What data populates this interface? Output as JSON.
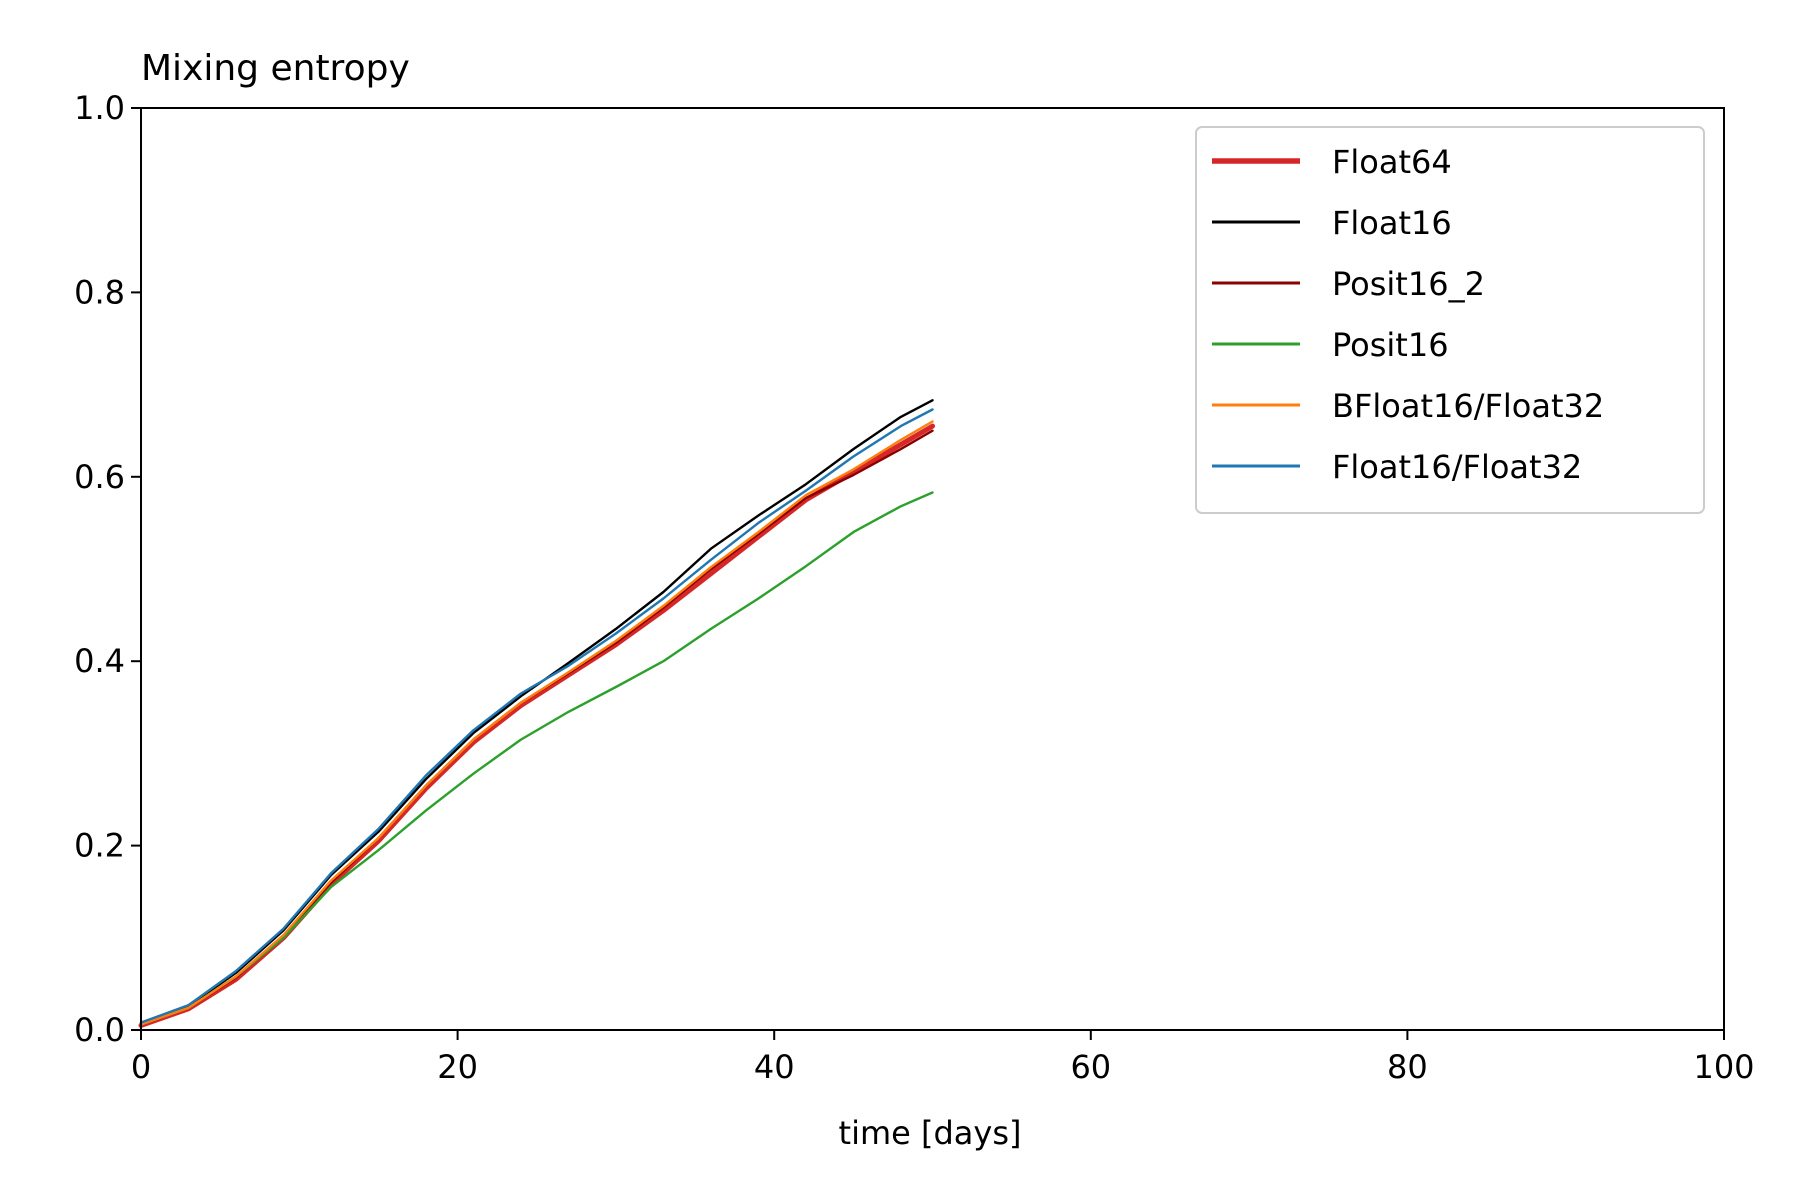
{
  "chart_data": {
    "type": "line",
    "title": "Mixing entropy",
    "xlabel": "time [days]",
    "ylabel": "",
    "xlim": [
      0,
      100
    ],
    "ylim": [
      0,
      1.0
    ],
    "xticks": [
      "0",
      "20",
      "40",
      "60",
      "80",
      "100"
    ],
    "yticks": [
      "0.0",
      "0.2",
      "0.4",
      "0.6",
      "0.8",
      "1.0"
    ],
    "grid": false,
    "legend_position": "top-right",
    "series": [
      {
        "name": "Float64",
        "color": "#d62728",
        "linewidth": "thick",
        "x": [
          0,
          3,
          6,
          9,
          12,
          15,
          18,
          21,
          24,
          27,
          30,
          33,
          36,
          39,
          42,
          45,
          48,
          50
        ],
        "y": [
          0.005,
          0.023,
          0.055,
          0.1,
          0.158,
          0.205,
          0.262,
          0.312,
          0.352,
          0.385,
          0.418,
          0.455,
          0.495,
          0.535,
          0.575,
          0.605,
          0.635,
          0.655
        ]
      },
      {
        "name": "Float16",
        "color": "#000000",
        "linewidth": "thin",
        "x": [
          0,
          3,
          6,
          9,
          12,
          15,
          18,
          21,
          24,
          27,
          30,
          33,
          36,
          39,
          42,
          45,
          48,
          50
        ],
        "y": [
          0.008,
          0.026,
          0.062,
          0.108,
          0.168,
          0.215,
          0.272,
          0.322,
          0.362,
          0.398,
          0.435,
          0.475,
          0.522,
          0.558,
          0.592,
          0.63,
          0.665,
          0.683
        ]
      },
      {
        "name": "Posit16_2",
        "color": "#8b0000",
        "linewidth": "thin",
        "x": [
          0,
          3,
          6,
          9,
          12,
          15,
          18,
          21,
          24,
          27,
          30,
          33,
          36,
          39,
          42,
          45,
          48,
          50
        ],
        "y": [
          0.006,
          0.024,
          0.057,
          0.102,
          0.16,
          0.208,
          0.265,
          0.315,
          0.355,
          0.387,
          0.42,
          0.458,
          0.5,
          0.538,
          0.577,
          0.602,
          0.63,
          0.65
        ]
      },
      {
        "name": "Posit16",
        "color": "#2ca02c",
        "linewidth": "thin",
        "x": [
          0,
          3,
          6,
          9,
          12,
          15,
          18,
          21,
          24,
          27,
          30,
          33,
          36,
          39,
          42,
          45,
          48,
          50
        ],
        "y": [
          0.006,
          0.024,
          0.058,
          0.1,
          0.155,
          0.195,
          0.238,
          0.278,
          0.315,
          0.345,
          0.372,
          0.4,
          0.435,
          0.468,
          0.503,
          0.54,
          0.568,
          0.583
        ]
      },
      {
        "name": "BFloat16/Float32",
        "color": "#ff7f0e",
        "linewidth": "thin",
        "x": [
          0,
          3,
          6,
          9,
          12,
          15,
          18,
          21,
          24,
          27,
          30,
          33,
          36,
          39,
          42,
          45,
          48,
          50
        ],
        "y": [
          0.006,
          0.024,
          0.058,
          0.103,
          0.162,
          0.208,
          0.265,
          0.315,
          0.355,
          0.388,
          0.422,
          0.46,
          0.502,
          0.54,
          0.58,
          0.608,
          0.64,
          0.66
        ]
      },
      {
        "name": "Float16/Float32",
        "color": "#1f77b4",
        "linewidth": "thin",
        "x": [
          0,
          3,
          6,
          9,
          12,
          15,
          18,
          21,
          24,
          27,
          30,
          33,
          36,
          39,
          42,
          45,
          48,
          50
        ],
        "y": [
          0.008,
          0.027,
          0.064,
          0.11,
          0.17,
          0.218,
          0.276,
          0.325,
          0.365,
          0.395,
          0.43,
          0.468,
          0.51,
          0.55,
          0.585,
          0.622,
          0.655,
          0.673
        ]
      }
    ]
  }
}
